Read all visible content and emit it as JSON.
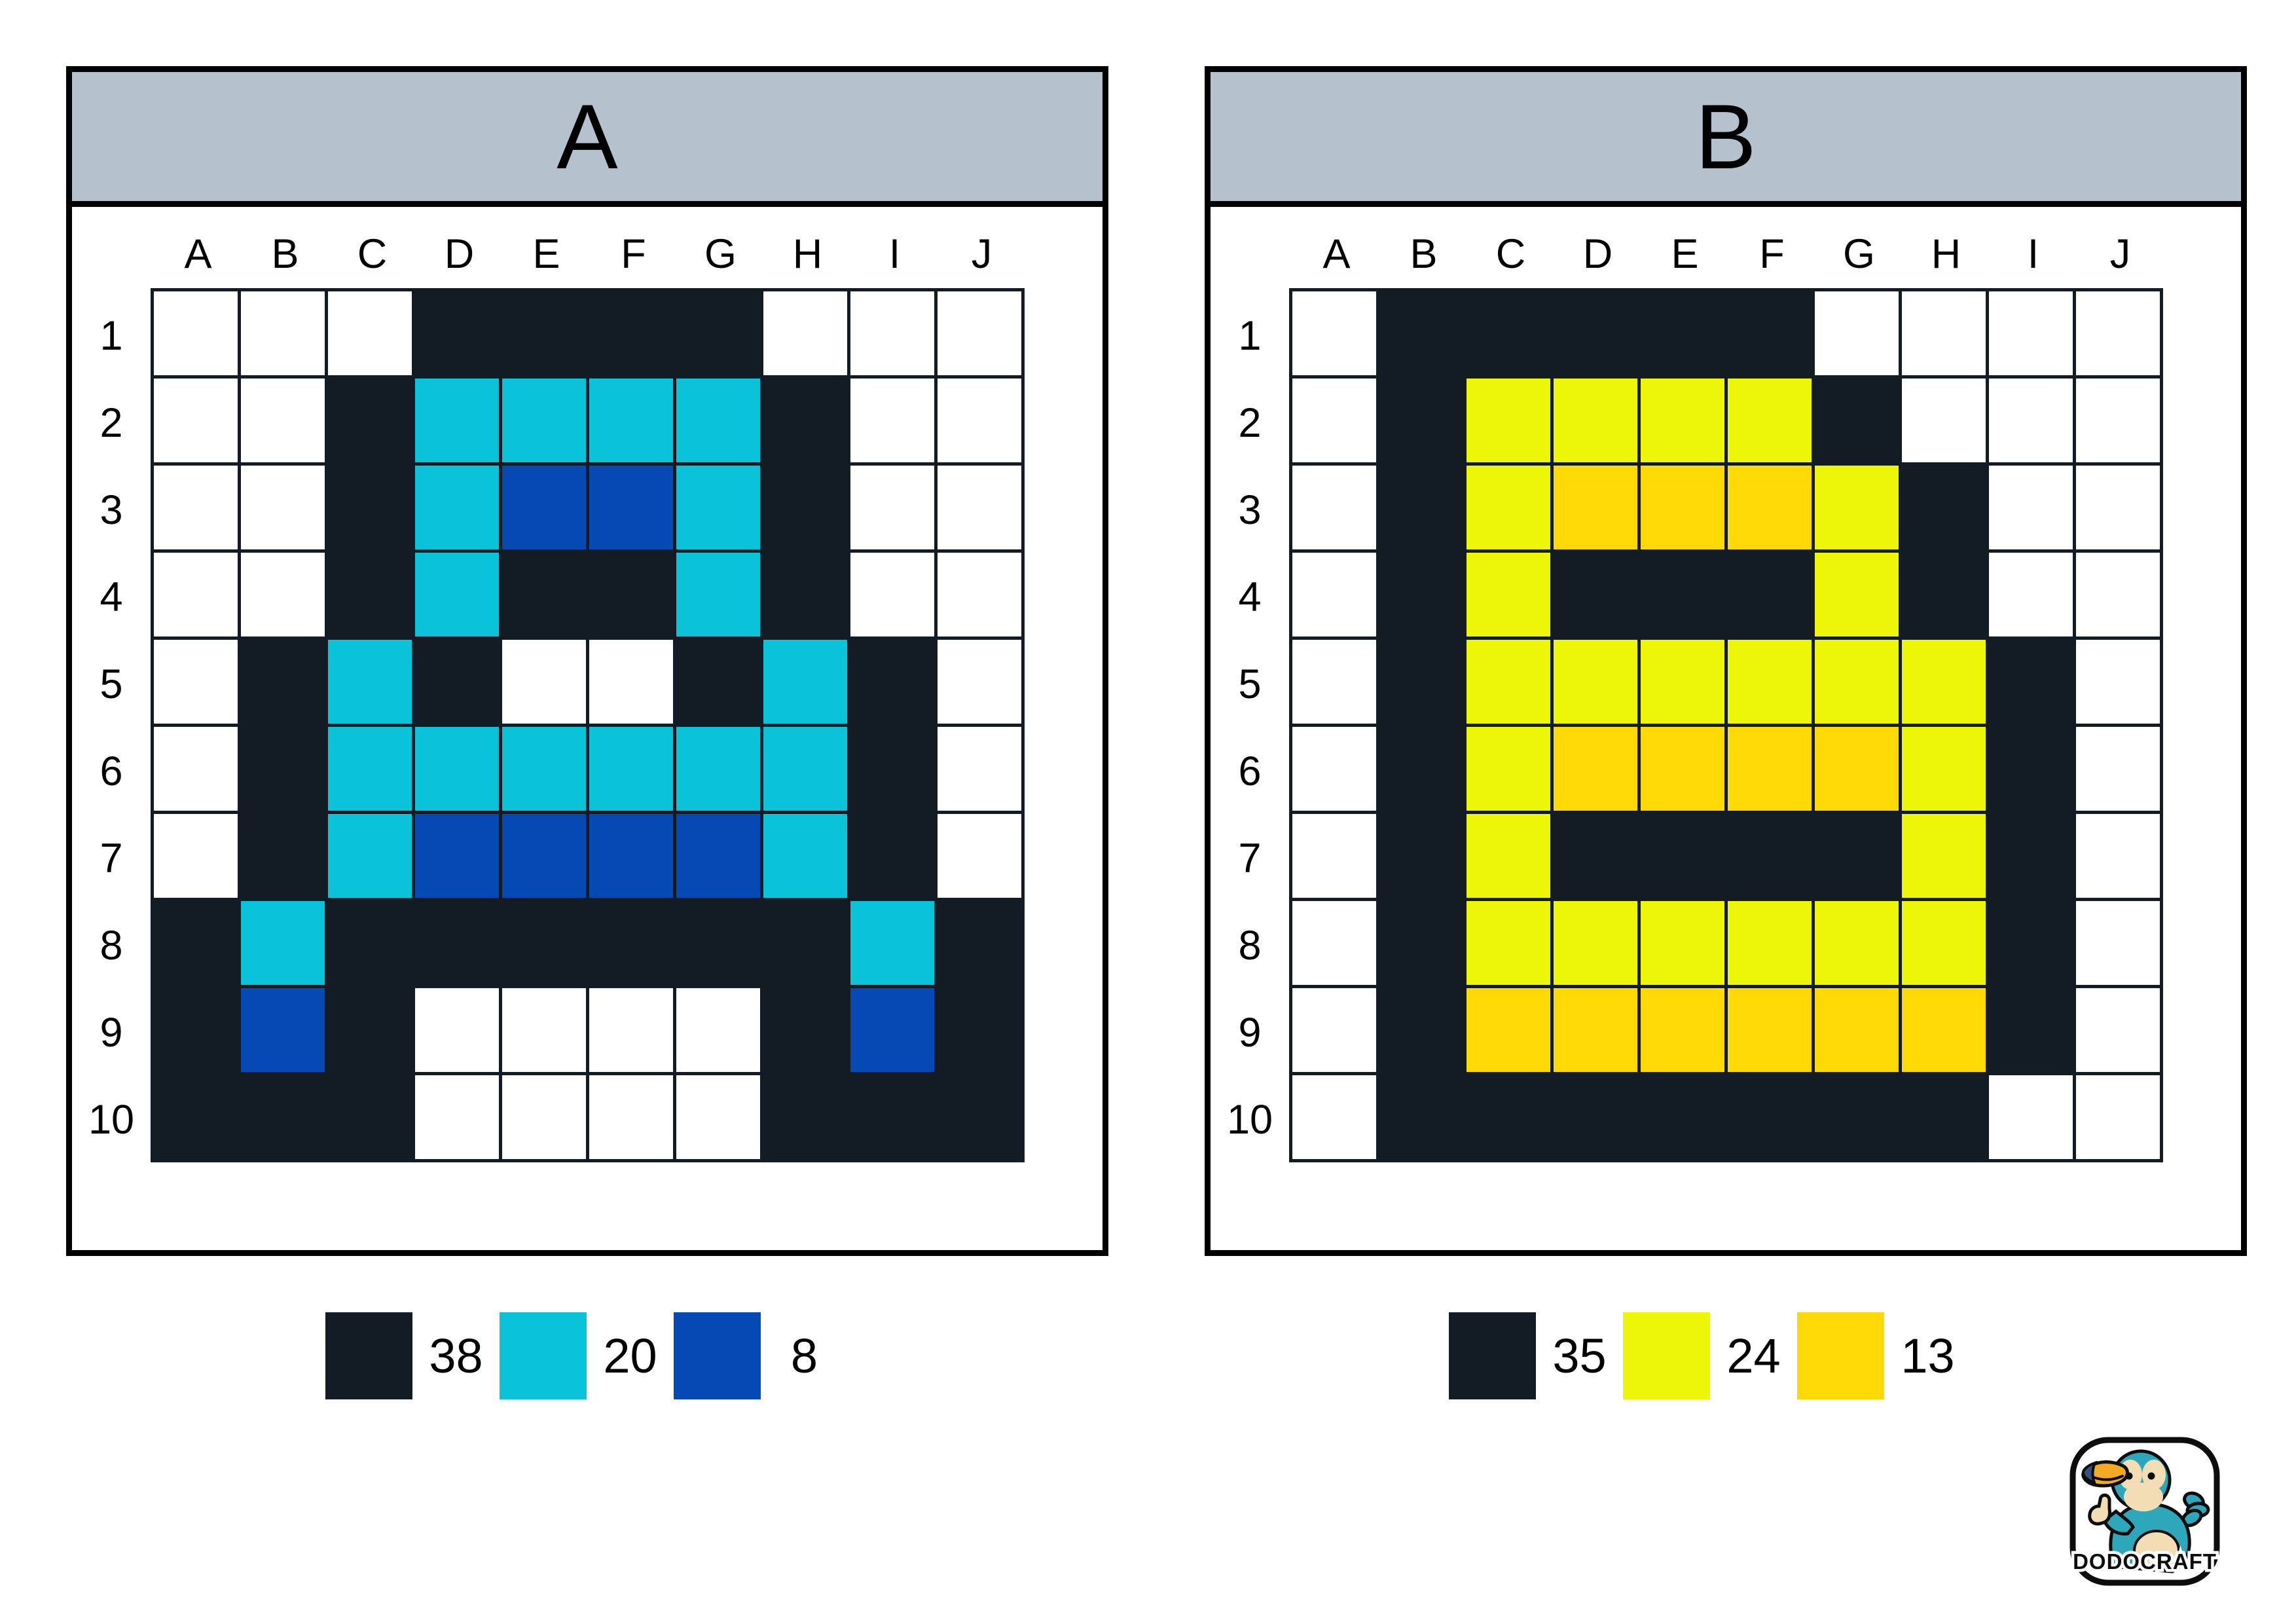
{
  "colors": {
    "page_background": "#ffffff",
    "panel_border": "#000000",
    "header_band": "#b5c2cd",
    "grid_line": "#131b25"
  },
  "panels": [
    {
      "title": "A",
      "columns": [
        "A",
        "B",
        "C",
        "D",
        "E",
        "F",
        "G",
        "H",
        "I",
        "J"
      ],
      "rows": [
        "1",
        "2",
        "3",
        "4",
        "5",
        "6",
        "7",
        "8",
        "9",
        "10"
      ],
      "palette": {
        "0": "#ffffff",
        "1": "#131b25",
        "2": "#0bc3d8",
        "3": "#0549b5"
      },
      "grid": [
        [
          0,
          0,
          0,
          1,
          1,
          1,
          1,
          0,
          0,
          0
        ],
        [
          0,
          0,
          1,
          2,
          2,
          2,
          2,
          1,
          0,
          0
        ],
        [
          0,
          0,
          1,
          2,
          3,
          3,
          2,
          1,
          0,
          0
        ],
        [
          0,
          0,
          1,
          2,
          1,
          1,
          2,
          1,
          0,
          0
        ],
        [
          0,
          1,
          2,
          1,
          0,
          0,
          1,
          2,
          1,
          0
        ],
        [
          0,
          1,
          2,
          2,
          2,
          2,
          2,
          2,
          1,
          0
        ],
        [
          0,
          1,
          2,
          3,
          3,
          3,
          3,
          2,
          1,
          0
        ],
        [
          1,
          2,
          1,
          1,
          1,
          1,
          1,
          1,
          2,
          1
        ],
        [
          1,
          3,
          1,
          0,
          0,
          0,
          0,
          1,
          3,
          1
        ],
        [
          1,
          1,
          1,
          0,
          0,
          0,
          0,
          1,
          1,
          1
        ]
      ],
      "legend": [
        {
          "color": "#131b25",
          "count": "38"
        },
        {
          "color": "#0bc3d8",
          "count": "20"
        },
        {
          "color": "#0549b5",
          "count": "8"
        }
      ]
    },
    {
      "title": "B",
      "columns": [
        "A",
        "B",
        "C",
        "D",
        "E",
        "F",
        "G",
        "H",
        "I",
        "J"
      ],
      "rows": [
        "1",
        "2",
        "3",
        "4",
        "5",
        "6",
        "7",
        "8",
        "9",
        "10"
      ],
      "palette": {
        "0": "#ffffff",
        "1": "#131b25",
        "2": "#edf606",
        "3": "#ffd905"
      },
      "grid": [
        [
          0,
          1,
          1,
          1,
          1,
          1,
          0,
          0,
          0,
          0
        ],
        [
          0,
          1,
          2,
          2,
          2,
          2,
          1,
          0,
          0,
          0
        ],
        [
          0,
          1,
          2,
          3,
          3,
          3,
          2,
          1,
          0,
          0
        ],
        [
          0,
          1,
          2,
          1,
          1,
          1,
          2,
          1,
          0,
          0
        ],
        [
          0,
          1,
          2,
          2,
          2,
          2,
          2,
          2,
          1,
          0
        ],
        [
          0,
          1,
          2,
          3,
          3,
          3,
          3,
          2,
          1,
          0
        ],
        [
          0,
          1,
          2,
          1,
          1,
          1,
          1,
          2,
          1,
          0
        ],
        [
          0,
          1,
          2,
          2,
          2,
          2,
          2,
          2,
          1,
          0
        ],
        [
          0,
          1,
          3,
          3,
          3,
          3,
          3,
          3,
          1,
          0
        ],
        [
          0,
          1,
          1,
          1,
          1,
          1,
          1,
          1,
          0,
          0
        ]
      ],
      "legend": [
        {
          "color": "#131b25",
          "count": "35"
        },
        {
          "color": "#edf606",
          "count": "24"
        },
        {
          "color": "#ffd905",
          "count": "13"
        }
      ]
    }
  ],
  "logo": {
    "brand": "DODOCRAFT"
  }
}
